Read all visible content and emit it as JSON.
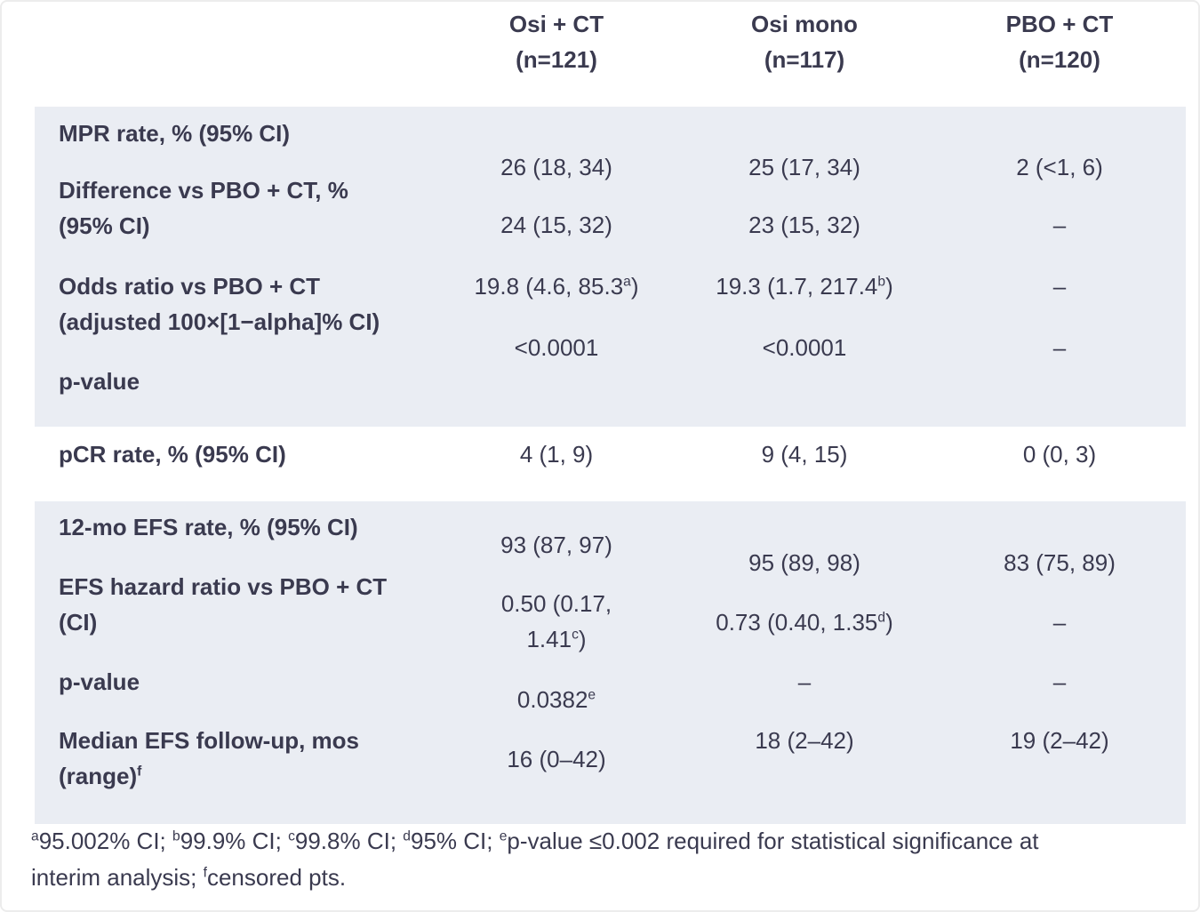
{
  "theme": {
    "text_color": "#3a3a4f",
    "band_color": "#eaedf3",
    "background_color": "#ffffff"
  },
  "header": {
    "columns": [
      {
        "line1": "Osi + CT",
        "line2": "(n=121)"
      },
      {
        "line1": "Osi mono",
        "line2": "(n=117)"
      },
      {
        "line1": "PBO + CT",
        "line2": "(n=120)"
      }
    ]
  },
  "rows": {
    "mpr": {
      "label": "MPR rate, % (95% CI)",
      "values": [
        "26 (18, 34)",
        "25 (17, 34)",
        "2 (<1, 6)"
      ]
    },
    "diff": {
      "label_lines": [
        "Difference vs PBO + CT, %",
        "(95% CI)"
      ],
      "values": [
        "24 (15, 32)",
        "23 (15, 32)",
        "–"
      ]
    },
    "odds": {
      "label_lines": [
        "Odds ratio vs PBO + CT",
        "(adjusted 100×[1−alpha]% CI)"
      ],
      "values_rich": [
        [
          {
            "t": "19.8 (4.6, 85.3"
          },
          {
            "s": "a"
          },
          {
            "t": ")"
          }
        ],
        [
          {
            "t": "19.3 (1.7, 217.4"
          },
          {
            "s": "b"
          },
          {
            "t": ")"
          }
        ],
        [
          {
            "t": "–"
          }
        ]
      ]
    },
    "pvalue1": {
      "label": "p-value",
      "values": [
        "<0.0001",
        "<0.0001",
        "–"
      ]
    },
    "pcr": {
      "label": "pCR rate, % (95% CI)",
      "values": [
        "4 (1, 9)",
        "9 (4, 15)",
        "0 (0, 3)"
      ]
    },
    "efs12": {
      "label": "12-mo EFS rate, % (95% CI)",
      "values": [
        "93 (87, 97)",
        "95 (89, 98)",
        "83 (75, 89)"
      ]
    },
    "hazard": {
      "label_lines": [
        "EFS hazard ratio vs PBO + CT",
        "(CI)"
      ],
      "values_rich": [
        [
          {
            "t": "0.50 (0.17, 1.41"
          },
          {
            "s": "c"
          },
          {
            "t": ")"
          }
        ],
        [
          {
            "t": "0.73 (0.40, 1.35"
          },
          {
            "s": "d"
          },
          {
            "t": ")"
          }
        ],
        [
          {
            "t": "–"
          }
        ]
      ]
    },
    "pvalue2": {
      "label": "p-value",
      "values_rich": [
        [
          {
            "t": "0.0382"
          },
          {
            "s": "e"
          }
        ],
        [
          {
            "t": "–"
          }
        ],
        [
          {
            "t": "–"
          }
        ]
      ]
    },
    "followup": {
      "label_line1": "Median EFS follow-up, mos",
      "label_line2_rich": [
        {
          "t": "(range)"
        },
        {
          "s": "f"
        }
      ],
      "values": [
        "16 (0–42)",
        "18 (2–42)",
        "19 (2–42)"
      ]
    }
  },
  "footnote": {
    "lines_rich": [
      [
        {
          "s": "a"
        },
        {
          "t": "95.002% CI; "
        },
        {
          "s": "b"
        },
        {
          "t": "99.9% CI; "
        },
        {
          "s": "c"
        },
        {
          "t": "99.8% CI; "
        },
        {
          "s": "d"
        },
        {
          "t": "95% CI; "
        },
        {
          "s": "e"
        },
        {
          "t": "p-value ≤0.002 required for statistical significance at"
        }
      ],
      [
        {
          "t": "interim analysis; "
        },
        {
          "s": "f"
        },
        {
          "t": "censored pts."
        }
      ]
    ]
  }
}
